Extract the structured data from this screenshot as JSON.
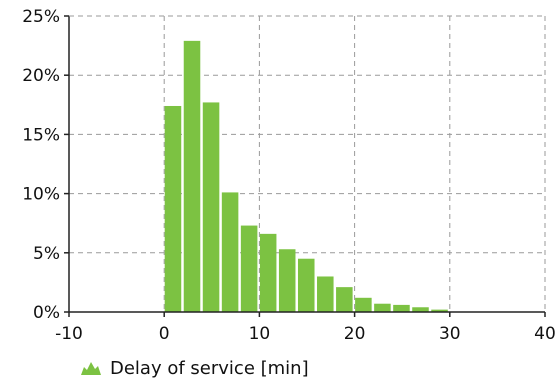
{
  "chart_data": {
    "type": "bar",
    "title": "",
    "xlabel": "",
    "ylabel": "",
    "xlim": [
      -10,
      40
    ],
    "ylim": [
      0,
      25
    ],
    "x_ticks": [
      -10,
      0,
      10,
      20,
      30,
      40
    ],
    "y_ticks": [
      0,
      5,
      10,
      15,
      20,
      25
    ],
    "x_tick_labels": [
      "-10",
      "0",
      "10",
      "20",
      "30",
      "40"
    ],
    "y_tick_labels": [
      "0%",
      "5%",
      "10%",
      "15%",
      "20%",
      "25%"
    ],
    "grid": true,
    "legend_position": "bottom-left",
    "bin_width": 2,
    "bin_starts": [
      0,
      2,
      4,
      6,
      8,
      10,
      12,
      14,
      16,
      18,
      20,
      22,
      24,
      26,
      28
    ],
    "series": [
      {
        "name": "Delay of service [min]",
        "color": "#7cc242",
        "values": [
          17.4,
          22.9,
          17.7,
          10.1,
          7.3,
          6.6,
          5.3,
          4.5,
          3.0,
          2.1,
          1.2,
          0.7,
          0.6,
          0.4,
          0.2
        ]
      }
    ]
  },
  "legend": {
    "label": "Delay of service [min]",
    "icon": "area-chart-icon",
    "color": "#7cc242"
  }
}
